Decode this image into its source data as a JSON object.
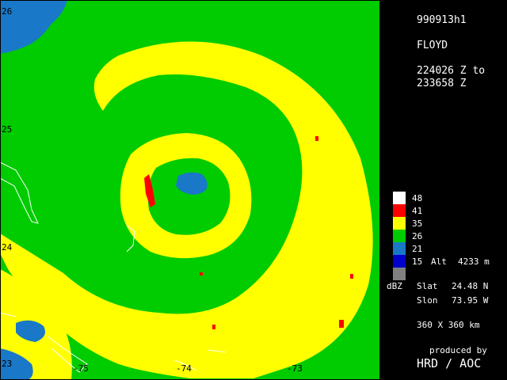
{
  "header": {
    "flight_id": "990913h1",
    "storm_name": "FLOYD",
    "time_start": "224026 Z to",
    "time_end": "233658 Z"
  },
  "legend": {
    "levels": [
      {
        "label": "48",
        "color": "#ffffff"
      },
      {
        "label": "41",
        "color": "#ff0000"
      },
      {
        "label": "35",
        "color": "#ffff00"
      },
      {
        "label": "26",
        "color": "#00cc00"
      },
      {
        "label": "21",
        "color": "#1a78c8"
      },
      {
        "label": "15",
        "color": "#0000cc"
      },
      {
        "label": "",
        "color": "#808080"
      }
    ],
    "unit": "dBZ",
    "alt_label": "Alt",
    "alt_value": "4233 m"
  },
  "center": {
    "slat_label": "Slat",
    "slat_value": "24.48 N",
    "slon_label": "Slon",
    "slon_value": "73.95 W"
  },
  "domain_size": "360 X 360 km",
  "credits": {
    "line1": "produced by",
    "line2": "HRD / AOC"
  },
  "map": {
    "lat_labels": [
      "26",
      "25",
      "24",
      "23"
    ],
    "lon_labels": [
      "-75",
      "-74",
      "-73"
    ]
  }
}
